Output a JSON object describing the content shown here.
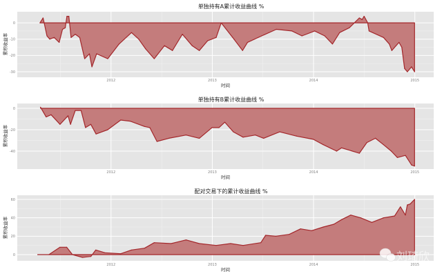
{
  "chart_data": [
    {
      "type": "area",
      "title": "单独持有A累计收益曲线 %",
      "xlabel": "时间",
      "ylabel": "累积收益率",
      "x_ticks": [
        "2012",
        "2013",
        "2014",
        "2015"
      ],
      "y_ticks": [
        -30,
        -20,
        -10,
        0
      ],
      "ylim": [
        -33.4,
        6.8
      ],
      "xlim": [
        "2011-01-28",
        "2015-03-10"
      ],
      "grid": true,
      "colors": {
        "fill": "#c47c7c",
        "line": "#a3262a",
        "panel": "#e5e5e5"
      },
      "points": [
        [
          "2011-04-20",
          0
        ],
        [
          "2011-05-01",
          3
        ],
        [
          "2011-05-15",
          -8
        ],
        [
          "2011-05-25",
          -10
        ],
        [
          "2011-06-10",
          -9
        ],
        [
          "2011-06-28",
          -12
        ],
        [
          "2011-07-10",
          -4
        ],
        [
          "2011-07-20",
          -3
        ],
        [
          "2011-07-26",
          4
        ],
        [
          "2011-08-02",
          4
        ],
        [
          "2011-08-10",
          -9
        ],
        [
          "2011-08-25",
          -7
        ],
        [
          "2011-09-10",
          -9
        ],
        [
          "2011-09-28",
          -22
        ],
        [
          "2011-10-15",
          -19
        ],
        [
          "2011-10-24",
          -27
        ],
        [
          "2011-11-10",
          -19
        ],
        [
          "2011-12-20",
          -22
        ],
        [
          "2012-01-30",
          -13
        ],
        [
          "2012-03-15",
          -6
        ],
        [
          "2012-04-10",
          -10
        ],
        [
          "2012-05-05",
          -16
        ],
        [
          "2012-06-05",
          -22
        ],
        [
          "2012-07-12",
          -14
        ],
        [
          "2012-08-10",
          -17
        ],
        [
          "2012-09-15",
          -7
        ],
        [
          "2012-10-20",
          -14
        ],
        [
          "2012-11-15",
          -17
        ],
        [
          "2012-12-15",
          -11
        ],
        [
          "2013-01-15",
          -9
        ],
        [
          "2013-02-02",
          0
        ],
        [
          "2013-03-20",
          -10
        ],
        [
          "2013-04-20",
          -17
        ],
        [
          "2013-05-08",
          -12
        ],
        [
          "2013-06-28",
          -8
        ],
        [
          "2013-08-20",
          -4
        ],
        [
          "2013-10-15",
          -5
        ],
        [
          "2013-11-20",
          -8
        ],
        [
          "2014-01-05",
          -5
        ],
        [
          "2014-02-10",
          -8
        ],
        [
          "2014-03-10",
          -13
        ],
        [
          "2014-04-05",
          -6
        ],
        [
          "2014-05-10",
          -3
        ],
        [
          "2014-06-15",
          3
        ],
        [
          "2014-06-25",
          2
        ],
        [
          "2014-07-02",
          4
        ],
        [
          "2014-07-15",
          0
        ],
        [
          "2014-07-20",
          -5
        ],
        [
          "2014-09-10",
          -9
        ],
        [
          "2014-10-01",
          -13
        ],
        [
          "2014-10-10",
          -17
        ],
        [
          "2014-11-05",
          -12
        ],
        [
          "2014-11-15",
          -15
        ],
        [
          "2014-11-25",
          -28
        ],
        [
          "2014-12-05",
          -30
        ],
        [
          "2014-12-20",
          -27
        ],
        [
          "2014-12-31",
          -30
        ]
      ]
    },
    {
      "type": "area",
      "title": "单独持有B累计收益曲线 %",
      "xlabel": "时间",
      "ylabel": "累积收益率",
      "x_ticks": [
        "2012",
        "2013",
        "2014",
        "2015"
      ],
      "y_ticks": [
        -40,
        -20,
        0
      ],
      "ylim": [
        -56.8,
        4.5
      ],
      "xlim": [
        "2011-01-28",
        "2015-03-10"
      ],
      "grid": true,
      "colors": {
        "fill": "#c47c7c",
        "line": "#a3262a",
        "panel": "#e5e5e5"
      },
      "points": [
        [
          "2011-04-22",
          1
        ],
        [
          "2011-05-12",
          -8
        ],
        [
          "2011-05-30",
          -6
        ],
        [
          "2011-07-01",
          -15
        ],
        [
          "2011-07-30",
          -7
        ],
        [
          "2011-08-08",
          -15
        ],
        [
          "2011-08-25",
          -2
        ],
        [
          "2011-09-15",
          -2
        ],
        [
          "2011-10-01",
          -18
        ],
        [
          "2011-10-20",
          -15
        ],
        [
          "2011-11-08",
          -24
        ],
        [
          "2011-12-20",
          -20
        ],
        [
          "2012-02-05",
          -11
        ],
        [
          "2012-03-10",
          -12
        ],
        [
          "2012-05-01",
          -17
        ],
        [
          "2012-05-20",
          -18
        ],
        [
          "2012-06-15",
          -31
        ],
        [
          "2012-07-28",
          -28
        ],
        [
          "2012-09-28",
          -25
        ],
        [
          "2012-11-15",
          -28
        ],
        [
          "2012-12-31",
          -18
        ],
        [
          "2013-01-25",
          -18
        ],
        [
          "2013-02-15",
          -13
        ],
        [
          "2013-03-18",
          -22
        ],
        [
          "2013-04-22",
          -27
        ],
        [
          "2013-06-05",
          -25
        ],
        [
          "2013-07-05",
          -28
        ],
        [
          "2013-09-01",
          -22
        ],
        [
          "2013-11-01",
          -26
        ],
        [
          "2013-12-31",
          -29
        ],
        [
          "2014-02-05",
          -34
        ],
        [
          "2014-03-25",
          -40
        ],
        [
          "2014-04-12",
          -37
        ],
        [
          "2014-06-15",
          -42
        ],
        [
          "2014-07-12",
          -32
        ],
        [
          "2014-08-12",
          -28
        ],
        [
          "2014-09-10",
          -34
        ],
        [
          "2014-10-08",
          -40
        ],
        [
          "2014-10-30",
          -46
        ],
        [
          "2014-11-28",
          -44
        ],
        [
          "2014-12-20",
          -53
        ],
        [
          "2014-12-31",
          -54
        ]
      ]
    },
    {
      "type": "area",
      "title": "配对交易下的累计收益曲线 %",
      "xlabel": "时间",
      "ylabel": "累积收益率",
      "x_ticks": [
        "2012",
        "2013",
        "2014",
        "2015"
      ],
      "y_ticks": [
        0,
        20,
        40,
        60
      ],
      "ylim": [
        -6.75,
        64.5
      ],
      "xlim": [
        "2011-01-28",
        "2015-03-10"
      ],
      "grid": true,
      "colors": {
        "fill": "#c47c7c",
        "line": "#a3262a",
        "panel": "#e5e5e5"
      },
      "points": [
        [
          "2011-04-12",
          0
        ],
        [
          "2011-05-22",
          0
        ],
        [
          "2011-07-01",
          8
        ],
        [
          "2011-07-25",
          8
        ],
        [
          "2011-08-15",
          0
        ],
        [
          "2011-09-20",
          -3
        ],
        [
          "2011-10-20",
          -2
        ],
        [
          "2011-11-07",
          5
        ],
        [
          "2011-12-10",
          2
        ],
        [
          "2012-02-05",
          1
        ],
        [
          "2012-03-15",
          5
        ],
        [
          "2012-05-01",
          7
        ],
        [
          "2012-06-05",
          13
        ],
        [
          "2012-08-05",
          12
        ],
        [
          "2012-09-28",
          16
        ],
        [
          "2012-11-15",
          12
        ],
        [
          "2013-01-15",
          10
        ],
        [
          "2013-03-08",
          12
        ],
        [
          "2013-04-22",
          10
        ],
        [
          "2013-06-25",
          13
        ],
        [
          "2013-07-12",
          21
        ],
        [
          "2013-08-18",
          20
        ],
        [
          "2013-10-05",
          22
        ],
        [
          "2013-11-15",
          28
        ],
        [
          "2013-12-25",
          26
        ],
        [
          "2014-02-05",
          30
        ],
        [
          "2014-03-15",
          33
        ],
        [
          "2014-04-12",
          38
        ],
        [
          "2014-05-15",
          43
        ],
        [
          "2014-06-20",
          40
        ],
        [
          "2014-07-30",
          35
        ],
        [
          "2014-09-10",
          40
        ],
        [
          "2014-10-20",
          42
        ],
        [
          "2014-11-10",
          52
        ],
        [
          "2014-11-28",
          43
        ],
        [
          "2014-12-05",
          54
        ],
        [
          "2014-12-15",
          55
        ],
        [
          "2014-12-31",
          60
        ]
      ]
    }
  ],
  "watermark": {
    "text": "刘琦欣",
    "icon": "wechat-icon"
  }
}
